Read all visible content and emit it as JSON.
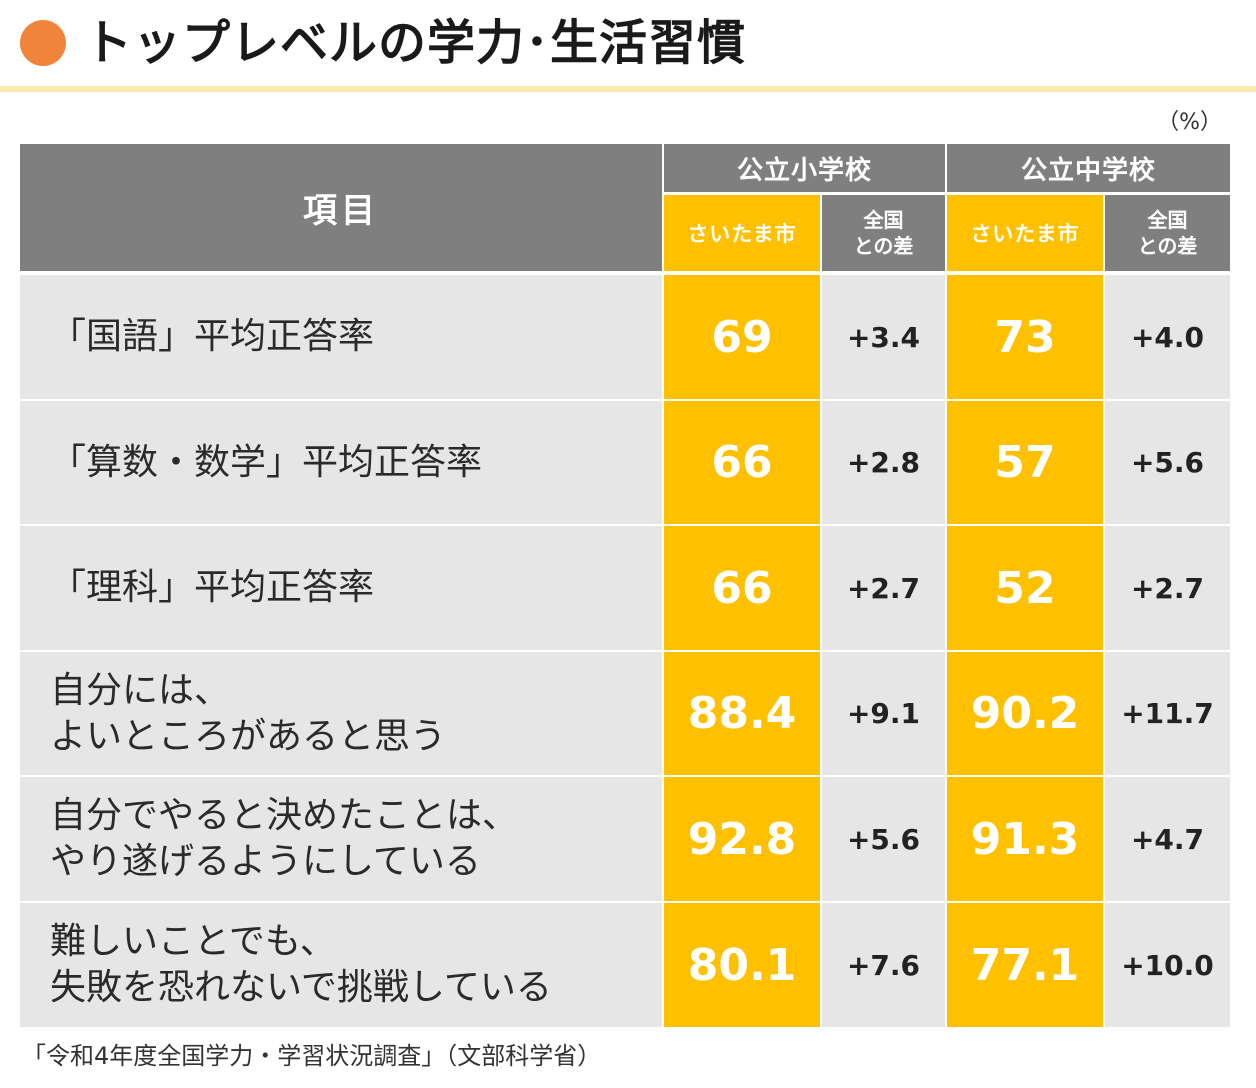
{
  "colors": {
    "accent_dot": "#F0843A",
    "title_rule": "#FBE9B0",
    "header_gray": "#7F7F7F",
    "city_yellow": "#FFC000",
    "row_gray": "#E7E6E6",
    "divider": "#FFFFFF"
  },
  "title": "トップレベルの学力･生活習慣",
  "unit": "（%）",
  "table": {
    "item_header": "項目",
    "groups": [
      {
        "label": "公立小学校",
        "city_label": "さいたま市",
        "diff_label_1": "全国",
        "diff_label_2": "との差"
      },
      {
        "label": "公立中学校",
        "city_label": "さいたま市",
        "diff_label_1": "全国",
        "diff_label_2": "との差"
      }
    ],
    "rows": [
      {
        "label": "「国語」平均正答率",
        "elem_city": "69",
        "elem_diff": "+3.4",
        "mid_city": "73",
        "mid_diff": "+4.0"
      },
      {
        "label": "「算数・数学」平均正答率",
        "elem_city": "66",
        "elem_diff": "+2.8",
        "mid_city": "57",
        "mid_diff": "+5.6"
      },
      {
        "label": "「理科」平均正答率",
        "elem_city": "66",
        "elem_diff": "+2.7",
        "mid_city": "52",
        "mid_diff": "+2.7"
      },
      {
        "label": "自分には、\nよいところがあると思う",
        "elem_city": "88.4",
        "elem_diff": "+9.1",
        "mid_city": "90.2",
        "mid_diff": "+11.7"
      },
      {
        "label": "自分でやると決めたことは、\nやり遂げるようにしている",
        "elem_city": "92.8",
        "elem_diff": "+5.6",
        "mid_city": "91.3",
        "mid_diff": "+4.7"
      },
      {
        "label": "難しいことでも、\n失敗を恐れないで挑戦している",
        "elem_city": "80.1",
        "elem_diff": "+7.6",
        "mid_city": "77.1",
        "mid_diff": "+10.0"
      }
    ]
  },
  "source": "「令和4年度全国学力・学習状況調査」（文部科学省）"
}
